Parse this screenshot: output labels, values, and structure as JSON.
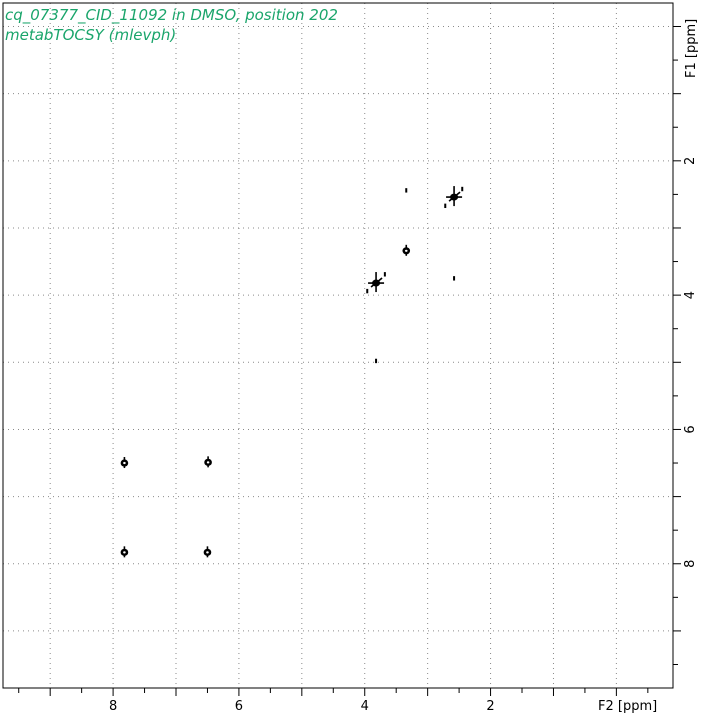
{
  "chart_data": {
    "type": "scatter",
    "title_lines": [
      "cq_07377_CID_11092 in DMSO, position 202",
      "metabTOCSY (mlevph)"
    ],
    "xlabel": "F2 [ppm]",
    "ylabel": "F1 [ppm]",
    "x_reversed": true,
    "y_reversed": true,
    "xlim": [
      9.75,
      -0.9
    ],
    "ylim": [
      -0.35,
      9.85
    ],
    "x_major_ticks": [
      8,
      6,
      4,
      2
    ],
    "y_major_ticks": [
      2,
      4,
      6,
      8
    ],
    "x_grid": [
      9.0,
      8.0,
      7.0,
      6.0,
      5.0,
      4.0,
      3.0,
      2.0,
      1.0,
      0.0
    ],
    "y_grid": [
      0.0,
      1.0,
      2.0,
      3.0,
      4.0,
      5.0,
      6.0,
      7.0,
      8.0,
      9.0
    ],
    "grid": true,
    "color": "#000000",
    "title_color": "#1aa56b",
    "peaks": [
      {
        "x": 7.82,
        "y": 6.5,
        "size": "medium"
      },
      {
        "x": 6.49,
        "y": 6.49,
        "size": "medium"
      },
      {
        "x": 7.82,
        "y": 7.83,
        "size": "medium"
      },
      {
        "x": 6.5,
        "y": 7.83,
        "size": "medium"
      },
      {
        "x": 3.82,
        "y": 3.82,
        "size": "large"
      },
      {
        "x": 3.34,
        "y": 3.34,
        "size": "medium"
      },
      {
        "x": 2.58,
        "y": 2.54,
        "size": "large"
      },
      {
        "x": 3.34,
        "y": 2.44,
        "size": "small"
      },
      {
        "x": 2.58,
        "y": 3.75,
        "size": "small"
      },
      {
        "x": 3.82,
        "y": 4.98,
        "size": "small"
      },
      {
        "x": 3.96,
        "y": 3.94,
        "size": "small"
      },
      {
        "x": 3.68,
        "y": 3.69,
        "size": "small"
      },
      {
        "x": 2.72,
        "y": 2.67,
        "size": "small"
      },
      {
        "x": 2.45,
        "y": 2.42,
        "size": "small"
      }
    ]
  }
}
